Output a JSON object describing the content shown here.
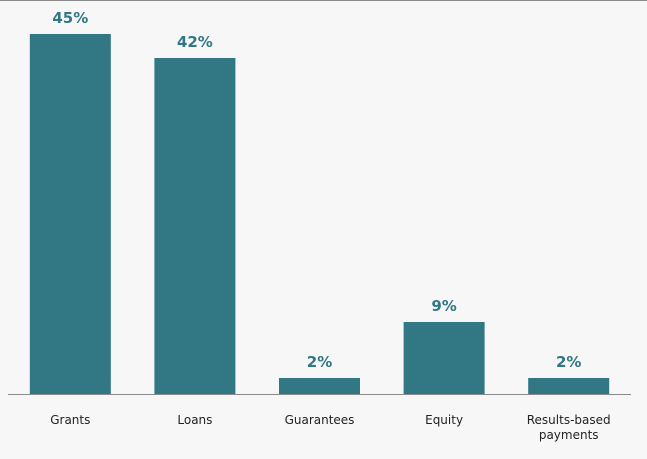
{
  "chart_data": {
    "type": "bar",
    "title": "",
    "xlabel": "",
    "ylabel": "",
    "categories": [
      "Grants",
      "Loans",
      "Guarantees",
      "Equity",
      "Results-based payments"
    ],
    "category_lines": [
      [
        "Grants"
      ],
      [
        "Loans"
      ],
      [
        "Guarantees"
      ],
      [
        "Equity"
      ],
      [
        "Results-based",
        "payments"
      ]
    ],
    "values": [
      45,
      42,
      2,
      9,
      2
    ],
    "value_labels": [
      "45%",
      "42%",
      "2%",
      "9%",
      "2%"
    ],
    "ylim": [
      0,
      45
    ],
    "grid": false,
    "legend": "none",
    "colors": {
      "bar": "#317784",
      "value_label": "#317784",
      "axis": "#8a8a8a",
      "category_text": "#222222",
      "background": "#f7f7f7"
    }
  }
}
